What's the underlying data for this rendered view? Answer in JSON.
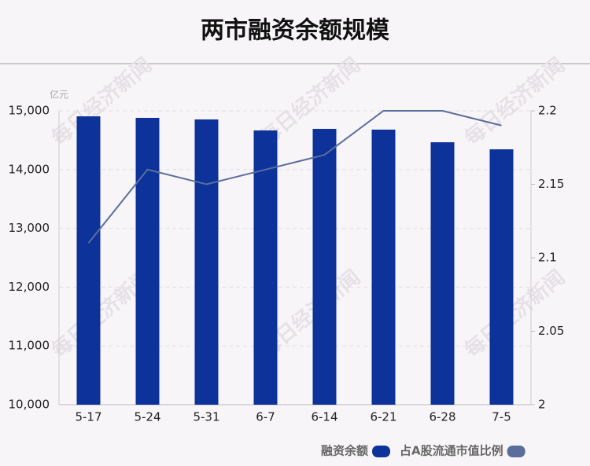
{
  "chart_data": {
    "type": "bar",
    "title": "两市融资余额规模",
    "unit": "亿元",
    "watermark": "每日经济新闻",
    "categories": [
      "5-17",
      "5-24",
      "5-31",
      "6-7",
      "6-14",
      "6-21",
      "6-28",
      "7-5"
    ],
    "series": [
      {
        "name": "融资余额",
        "color": "#0d339a",
        "type": "bar",
        "values": [
          14906,
          14880,
          14853,
          14666,
          14693,
          14680,
          14465,
          14345
        ]
      },
      {
        "name": "占A股流通市值比例",
        "color": "#5a6e9e",
        "type": "line",
        "axis": "y2",
        "values": [
          2.11,
          2.16,
          2.15,
          2.16,
          2.17,
          2.2,
          2.2,
          2.19
        ]
      }
    ],
    "ylim": [
      10000,
      15000
    ],
    "yticks": [
      {
        "value": 10000,
        "label": "10,000"
      },
      {
        "value": 11000,
        "label": "11,000"
      },
      {
        "value": 12000,
        "label": "12,000"
      },
      {
        "value": 13000,
        "label": "13,000"
      },
      {
        "value": 14000,
        "label": "14,000"
      },
      {
        "value": 15000,
        "label": "15,000"
      }
    ],
    "y2lim": [
      2,
      2.2
    ],
    "y2ticks": [
      2,
      2.05,
      2.1,
      2.15,
      2.2
    ],
    "grid": true
  }
}
